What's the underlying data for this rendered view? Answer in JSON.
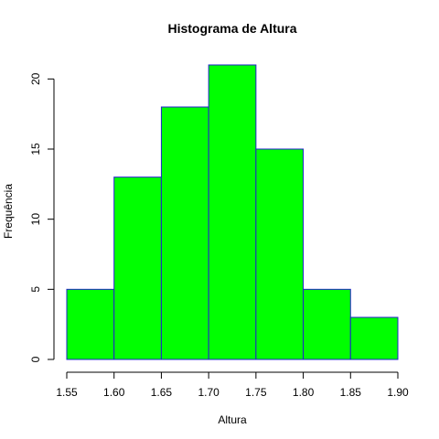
{
  "chart_data": {
    "type": "bar",
    "title": "Histograma de Altura",
    "xlabel": "Altura",
    "ylabel": "Frequência",
    "bins": [
      {
        "start": 1.55,
        "end": 1.6,
        "count": 5
      },
      {
        "start": 1.6,
        "end": 1.65,
        "count": 13
      },
      {
        "start": 1.65,
        "end": 1.7,
        "count": 18
      },
      {
        "start": 1.7,
        "end": 1.75,
        "count": 21
      },
      {
        "start": 1.75,
        "end": 1.8,
        "count": 15
      },
      {
        "start": 1.8,
        "end": 1.85,
        "count": 5
      },
      {
        "start": 1.85,
        "end": 1.9,
        "count": 3
      }
    ],
    "x_ticks": [
      "1.55",
      "1.60",
      "1.65",
      "1.70",
      "1.75",
      "1.80",
      "1.85",
      "1.90"
    ],
    "y_ticks": [
      "0",
      "5",
      "10",
      "15",
      "20"
    ],
    "xlim": [
      1.55,
      1.9
    ],
    "ylim": [
      0,
      21
    ],
    "bar_color": "#00ff00",
    "bar_border_color": "#2222cc",
    "grid": false,
    "legend": "none"
  }
}
